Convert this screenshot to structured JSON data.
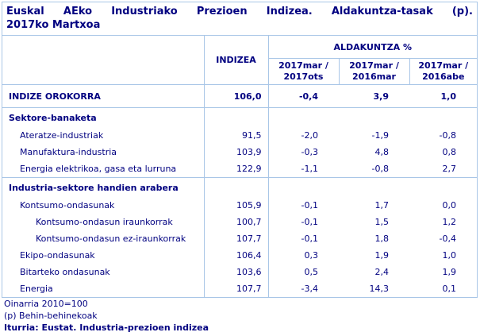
{
  "title": {
    "line1": "Euskal AEko Industriako Prezioen Indizea. Aldakuntza-tasak (p).",
    "line2": "2017ko Martxoa"
  },
  "table": {
    "index_col_header": "INDIZEA",
    "change_group_header": "ALDAKUNTZA %",
    "period_headers": [
      {
        "line1": "2017mar /",
        "line2": "2017ots"
      },
      {
        "line1": "2017mar /",
        "line2": "2016mar"
      },
      {
        "line1": "2017mar /",
        "line2": "2016abe"
      }
    ],
    "rows": [
      {
        "label": "INDIZE OROKORRA",
        "indizea": "106,0",
        "v1": "-0,4",
        "v2": "3,9",
        "v3": "1,0"
      },
      {
        "label": "Sektore-banaketa"
      },
      {
        "label": "Ateratze-industriak",
        "indizea": "91,5",
        "v1": "-2,0",
        "v2": "-1,9",
        "v3": "-0,8"
      },
      {
        "label": "Manufaktura-industria",
        "indizea": "103,9",
        "v1": "-0,3",
        "v2": "4,8",
        "v3": "0,8"
      },
      {
        "label": "Energia elektrikoa, gasa eta lurruna",
        "indizea": "122,9",
        "v1": "-1,1",
        "v2": "-0,8",
        "v3": "2,7"
      },
      {
        "label": "Industria-sektore handien arabera"
      },
      {
        "label": "Kontsumo-ondasunak",
        "indizea": "105,9",
        "v1": "-0,1",
        "v2": "1,7",
        "v3": "0,0"
      },
      {
        "label": "Kontsumo-ondasun iraunkorrak",
        "indizea": "100,7",
        "v1": "-0,1",
        "v2": "1,5",
        "v3": "1,2"
      },
      {
        "label": "Kontsumo-ondasun ez-iraunkorrak",
        "indizea": "107,7",
        "v1": "-0,1",
        "v2": "1,8",
        "v3": "-0,4"
      },
      {
        "label": "Ekipo-ondasunak",
        "indizea": "106,4",
        "v1": "0,3",
        "v2": "1,9",
        "v3": "1,0"
      },
      {
        "label": "Bitarteko ondasunak",
        "indizea": "103,6",
        "v1": "0,5",
        "v2": "2,4",
        "v3": "1,9"
      },
      {
        "label": "Energia",
        "indizea": "107,7",
        "v1": "-3,4",
        "v2": "14,3",
        "v3": "0,1"
      }
    ]
  },
  "footer": {
    "base_note": "Oinarria 2010=100",
    "provisional_note": "(p) Behin-behinekoak",
    "source": "Iturria: Eustat. Industria-prezioen indizea"
  },
  "colors": {
    "text": "#000080",
    "border": "#a9c6e7",
    "background": "#ffffff"
  }
}
